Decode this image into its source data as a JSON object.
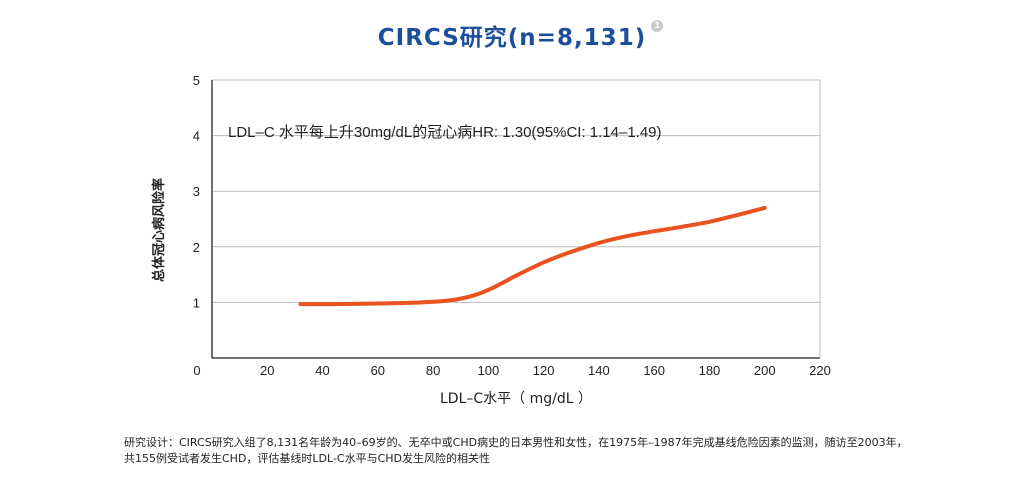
{
  "title": "CIRCS研究(n=8,131)",
  "reference_marker": "1",
  "footnote": "研究设计：CIRCS研究入组了8,131名年龄为40–69岁的、无卒中或CHD病史的日本男性和女性，在1975年–1987年完成基线危险因素的监测，随访至2003年，共155例受试者发生CHD，评估基线时LDL-C水平与CHD发生风险的相关性",
  "colors": {
    "title": "#1b4e9b",
    "curve": "#e8531f",
    "axis": "#231f20",
    "grid": "#bcbcbc"
  },
  "chart_data": {
    "type": "line",
    "title": "CIRCS研究(n=8,131)",
    "xlabel": "LDL–C水平（ mg/dL ）",
    "ylabel": "总体冠心病风险率",
    "xlim": [
      0,
      220
    ],
    "ylim": [
      0,
      5
    ],
    "x_ticks": [
      0,
      20,
      40,
      60,
      80,
      100,
      120,
      140,
      160,
      180,
      200,
      220
    ],
    "y_ticks": [
      1,
      2,
      3,
      4,
      5
    ],
    "grid": "horizontal",
    "annotation": "LDL–C 水平每上升30mg/dL的冠心病HR: 1.30(95%CI: 1.14–1.49)",
    "series": [
      {
        "x": [
          32,
          45,
          60,
          70,
          80,
          88,
          95,
          102,
          110,
          120,
          130,
          140,
          150,
          160,
          170,
          180,
          190,
          200
        ],
        "y": [
          0.97,
          0.97,
          0.98,
          0.99,
          1.01,
          1.05,
          1.13,
          1.27,
          1.48,
          1.72,
          1.91,
          2.07,
          2.19,
          2.28,
          2.36,
          2.45,
          2.57,
          2.7
        ]
      }
    ]
  }
}
